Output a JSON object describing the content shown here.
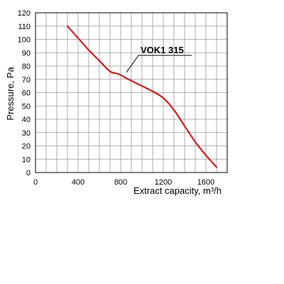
{
  "chart_data": {
    "type": "line",
    "title": "",
    "xlabel": "Extract capacity, m³/h",
    "ylabel": "Pressure, Pa",
    "xlim": [
      0,
      1800
    ],
    "ylim": [
      0,
      120
    ],
    "xticks": [
      0,
      400,
      800,
      1200,
      1600
    ],
    "xtick_labels": [
      "0",
      "400",
      "800",
      "1200",
      "1600"
    ],
    "yticks": [
      0,
      10,
      20,
      30,
      40,
      50,
      60,
      70,
      80,
      90,
      100,
      110,
      120
    ],
    "ytick_labels": [
      "0",
      "10",
      "20",
      "30",
      "40",
      "50",
      "60",
      "70",
      "80",
      "90",
      "100",
      "110",
      "120"
    ],
    "grid": true,
    "series": [
      {
        "name": "VOK1 315",
        "color": "#dd0000",
        "x": [
          300,
          400,
          500,
          600,
          700,
          780,
          850,
          900,
          1000,
          1100,
          1200,
          1300,
          1400,
          1500,
          1600,
          1700
        ],
        "y": [
          110,
          101,
          92,
          84,
          76,
          74,
          71,
          69,
          65,
          61,
          56,
          47,
          35,
          23,
          13,
          4
        ]
      }
    ],
    "annotations": [
      {
        "text": "VOK1 315",
        "x": 850,
        "y": 75
      }
    ]
  }
}
